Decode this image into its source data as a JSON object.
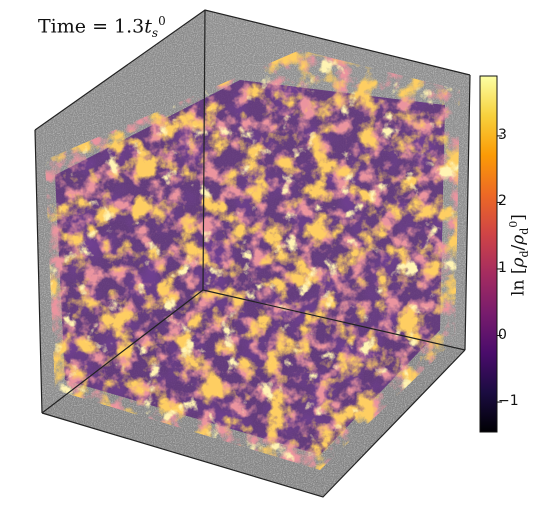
{
  "annotation": {
    "prefix": "Time",
    "equals": "=",
    "value": "1.3",
    "var": "t",
    "sub": "s",
    "sup": "0"
  },
  "colorbar": {
    "label": {
      "fn": "ln",
      "open": "[",
      "num": "ρ",
      "num_sub": "d",
      "slash": "/",
      "den": "ρ",
      "den_sub": "d",
      "den_sup": "0",
      "close": "]"
    },
    "min": -1.45,
    "max": 3.9,
    "ticks": [
      {
        "value": -1,
        "label": "−1"
      },
      {
        "value": 0,
        "label": "0"
      },
      {
        "value": 1,
        "label": "1"
      },
      {
        "value": 2,
        "label": "2"
      },
      {
        "value": 3,
        "label": "3"
      }
    ],
    "colormap": "inferno",
    "colormap_stops": [
      "#000004",
      "#1b0c41",
      "#4a0c6b",
      "#781c6d",
      "#a52c60",
      "#cf4446",
      "#ed6925",
      "#fb9b06",
      "#f7d13d",
      "#fcffa4"
    ]
  },
  "render": {
    "wall_color": "#8b8b8b",
    "noise_color": "#c8c8c8",
    "base_color": "#5a2a78"
  }
}
